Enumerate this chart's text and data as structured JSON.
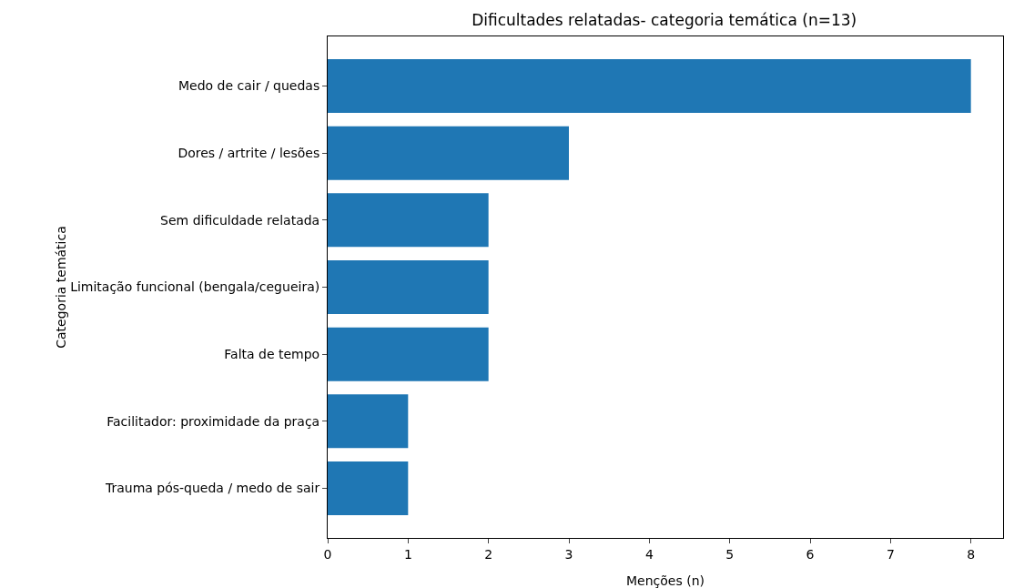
{
  "chart_data": {
    "type": "bar",
    "orientation": "horizontal",
    "title": "Dificultades relatadas- categoria temática (n=13)",
    "xlabel": "Menções (n)",
    "ylabel": "Categoria temática",
    "categories": [
      "Medo de cair / quedas",
      "Dores / artrite / lesões",
      "Sem dificuldade relatada",
      "Limitação funcional (bengala/cegueira)",
      "Falta de tempo",
      "Facilitador: proximidade da praça",
      "Trauma pós-queda / medo de sair"
    ],
    "values": [
      8,
      3,
      2,
      2,
      2,
      1,
      1
    ],
    "color": "#1f77b4",
    "xlim": [
      0,
      8.4
    ],
    "xticks": [
      0,
      1,
      2,
      3,
      4,
      5,
      6,
      7,
      8
    ]
  }
}
